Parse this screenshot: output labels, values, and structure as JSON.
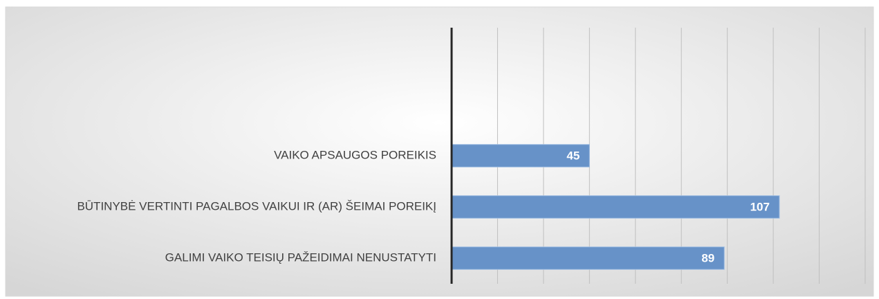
{
  "chart_data": {
    "type": "bar",
    "orientation": "horizontal",
    "categories": [
      null,
      null,
      "VAIKO APSAUGOS POREIKIS",
      "BŪTINYBĖ VERTINTI PAGALBOS VAIKUI IR (AR) ŠEIMAI POREIKĮ",
      "GALIMI VAIKO TEISIŲ PAŽEIDIMAI NENUSTATYTI"
    ],
    "values": [
      null,
      null,
      45,
      107,
      89
    ],
    "color": "#6792c8",
    "xlim": [
      0,
      135
    ],
    "xticks": [
      0,
      15,
      30,
      45,
      60,
      75,
      90,
      105,
      120,
      135
    ],
    "grid": true
  }
}
